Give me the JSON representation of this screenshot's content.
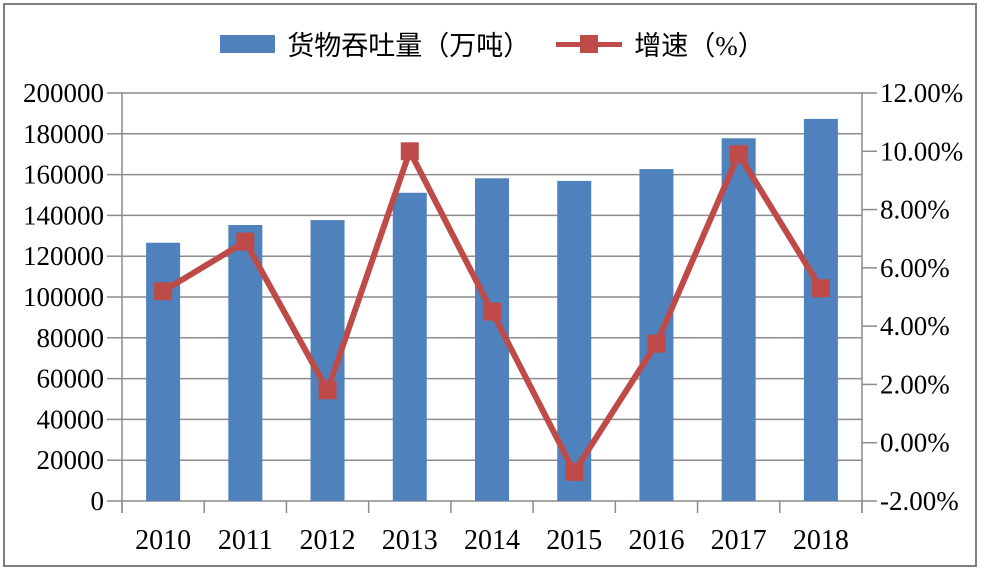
{
  "legend": {
    "throughput_label": "货物吞吐量（万吨）",
    "growth_label": "增速（%）"
  },
  "colors": {
    "bar": "#4F81BD",
    "line": "#BE4B48",
    "grid": "#8C8C8C",
    "axis": "#8C8C8C",
    "frame_border": "#7F7F7F",
    "text": "#000000",
    "background": "#FFFFFF"
  },
  "chart_data": {
    "type": "bar+line combo",
    "categories": [
      "2010",
      "2011",
      "2012",
      "2013",
      "2014",
      "2015",
      "2016",
      "2017",
      "2018"
    ],
    "series": [
      {
        "name": "货物吞吐量（万吨）",
        "type": "bar",
        "axis": "left",
        "values": [
          126600,
          135300,
          137700,
          151100,
          158200,
          156900,
          162700,
          177800,
          187300
        ]
      },
      {
        "name": "增速（%）",
        "type": "line",
        "axis": "right",
        "values": [
          5.2,
          6.9,
          1.8,
          10.0,
          4.5,
          -1.0,
          3.4,
          9.9,
          5.3
        ]
      }
    ],
    "left_axis": {
      "min": 0,
      "max": 200000,
      "step": 20000,
      "format": "int",
      "tick_labels": [
        "0",
        "20000",
        "40000",
        "60000",
        "80000",
        "100000",
        "120000",
        "140000",
        "160000",
        "180000",
        "200000"
      ]
    },
    "right_axis": {
      "min": -2,
      "max": 12,
      "step": 2,
      "format": "percent2",
      "tick_labels": [
        "-2.00%",
        "0.00%",
        "2.00%",
        "4.00%",
        "6.00%",
        "8.00%",
        "10.00%",
        "12.00%"
      ]
    },
    "title": "",
    "xlabel": "",
    "ylabel": "",
    "grid": true,
    "legend_position": "top-center"
  }
}
